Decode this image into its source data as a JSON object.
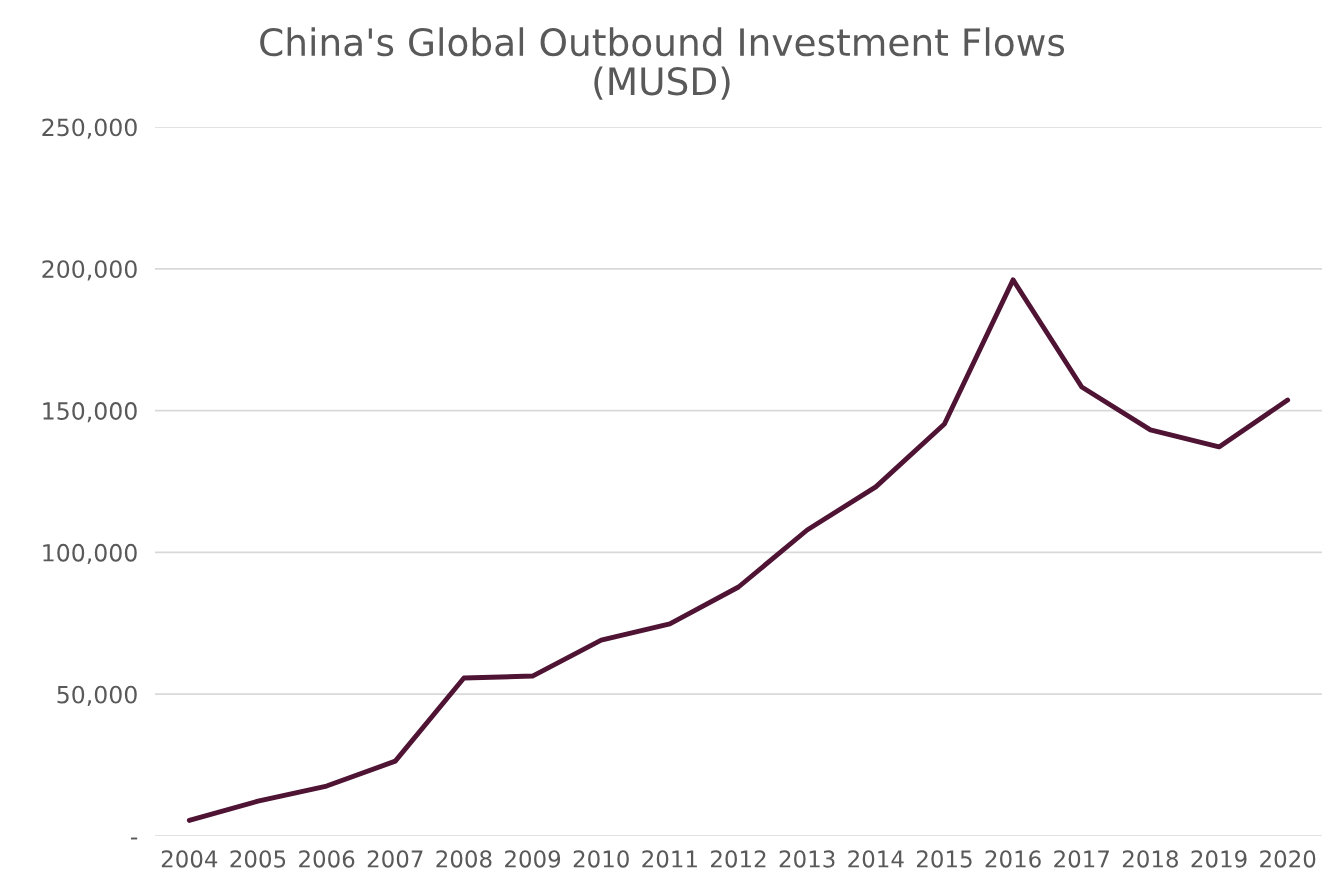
{
  "chart_data": {
    "type": "line",
    "title": "China's Global Outbound Investment Flows\n(MUSD)",
    "categories": [
      "2004",
      "2005",
      "2006",
      "2007",
      "2008",
      "2009",
      "2010",
      "2011",
      "2012",
      "2013",
      "2014",
      "2015",
      "2016",
      "2017",
      "2018",
      "2019",
      "2020"
    ],
    "series": [
      {
        "color": "#4f1434",
        "values": [
          5500,
          12300,
          17600,
          26400,
          55700,
          56400,
          69100,
          74800,
          87800,
          107900,
          123100,
          145300,
          196100,
          158300,
          143200,
          137200,
          153700
        ]
      }
    ],
    "ylim": [
      0,
      250000
    ],
    "yticks": [
      {
        "value": 0,
        "label": "-"
      },
      {
        "value": 50000,
        "label": "50,000"
      },
      {
        "value": 100000,
        "label": "100,000"
      },
      {
        "value": 150000,
        "label": "150,000"
      },
      {
        "value": 200000,
        "label": "200,000"
      },
      {
        "value": 250000,
        "label": "250,000"
      }
    ],
    "grid": "y",
    "legend": false,
    "marker": "none",
    "line_style": "solid"
  }
}
